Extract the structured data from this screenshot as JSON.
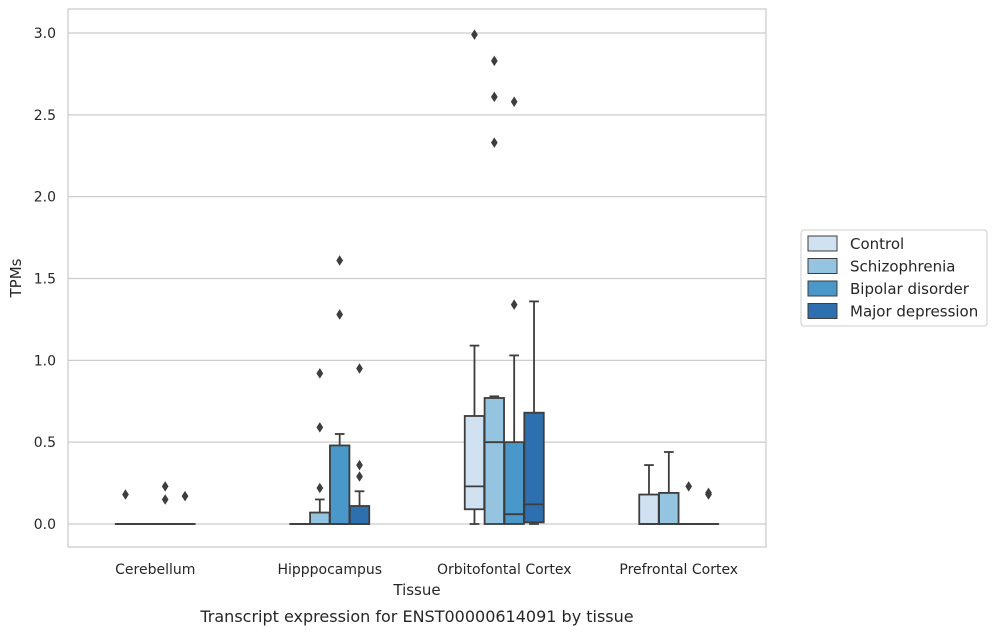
{
  "chart_data": {
    "type": "box",
    "caption": "Transcript expression for ENST00000614091 by tissue",
    "xlabel": "Tissue",
    "ylabel": "TPMs",
    "ylim": [
      -0.15,
      3.15
    ],
    "yticks": [
      0.0,
      0.5,
      1.0,
      1.5,
      2.0,
      2.5,
      3.0
    ],
    "ytick_labels": [
      "0.0",
      "0.5",
      "1.0",
      "1.5",
      "2.0",
      "2.5",
      "3.0"
    ],
    "grid": "horizontal",
    "legend_position": "right",
    "categories": [
      "Cerebellum",
      "Hipppocampus",
      "Orbitofontal Cortex",
      "Prefrontal Cortex"
    ],
    "series": [
      {
        "name": "Control",
        "color": "#d0e1f2",
        "boxes": [
          {
            "q1": 0,
            "median": 0,
            "q3": 0,
            "whislo": 0,
            "whishi": 0,
            "fliers": [
              0.18
            ]
          },
          {
            "q1": 0,
            "median": 0,
            "q3": 0,
            "whislo": 0,
            "whishi": 0,
            "fliers": []
          },
          {
            "q1": 0.09,
            "median": 0.23,
            "q3": 0.66,
            "whislo": 0,
            "whishi": 1.09,
            "fliers": [
              2.99
            ]
          },
          {
            "q1": 0,
            "median": 0,
            "q3": 0.18,
            "whislo": 0,
            "whishi": 0.36,
            "fliers": []
          }
        ]
      },
      {
        "name": "Schizophrenia",
        "color": "#94c4df",
        "boxes": [
          {
            "q1": 0,
            "median": 0,
            "q3": 0,
            "whislo": 0,
            "whishi": 0,
            "fliers": []
          },
          {
            "q1": 0,
            "median": 0,
            "q3": 0.07,
            "whislo": 0,
            "whishi": 0.15,
            "fliers": [
              0.22,
              0.59,
              0.92
            ]
          },
          {
            "q1": 0,
            "median": 0.5,
            "q3": 0.77,
            "whislo": 0,
            "whishi": 0.78,
            "fliers": [
              2.33,
              2.61,
              2.83
            ]
          },
          {
            "q1": 0,
            "median": 0,
            "q3": 0.19,
            "whislo": 0,
            "whishi": 0.44,
            "fliers": []
          }
        ]
      },
      {
        "name": "Bipolar disorder",
        "color": "#4a98c9",
        "boxes": [
          {
            "q1": 0,
            "median": 0,
            "q3": 0,
            "whislo": 0,
            "whishi": 0,
            "fliers": [
              0.15,
              0.23
            ]
          },
          {
            "q1": 0,
            "median": 0,
            "q3": 0.48,
            "whislo": 0,
            "whishi": 0.55,
            "fliers": [
              1.28,
              1.61
            ]
          },
          {
            "q1": 0,
            "median": 0.06,
            "q3": 0.5,
            "whislo": 0,
            "whishi": 1.03,
            "fliers": [
              1.34,
              2.58
            ]
          },
          {
            "q1": 0,
            "median": 0,
            "q3": 0,
            "whislo": 0,
            "whishi": 0,
            "fliers": [
              0.23
            ]
          }
        ]
      },
      {
        "name": "Major depression",
        "color": "#2e6faf",
        "boxes": [
          {
            "q1": 0,
            "median": 0,
            "q3": 0,
            "whislo": 0,
            "whishi": 0,
            "fliers": [
              0.17
            ]
          },
          {
            "q1": 0,
            "median": 0,
            "q3": 0.11,
            "whislo": 0,
            "whishi": 0.2,
            "fliers": [
              0.29,
              0.36,
              0.95
            ]
          },
          {
            "q1": 0.01,
            "median": 0.12,
            "q3": 0.68,
            "whislo": 0,
            "whishi": 1.36,
            "fliers": []
          },
          {
            "q1": 0,
            "median": 0,
            "q3": 0,
            "whislo": 0,
            "whishi": 0,
            "fliers": [
              0.18,
              0.19
            ]
          }
        ]
      }
    ]
  }
}
